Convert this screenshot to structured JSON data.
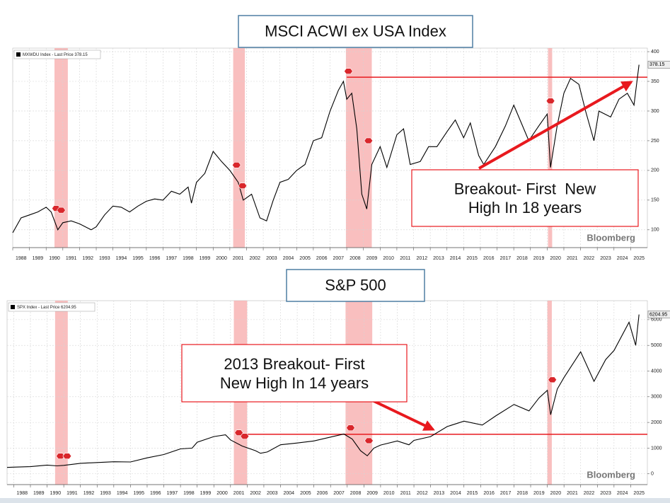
{
  "chart_data": [
    {
      "type": "line",
      "title": "MSCI ACWI ex USA Index",
      "x": [
        1988.0,
        1988.5,
        1989.0,
        1989.5,
        1990.0,
        1990.3,
        1990.7,
        1991.0,
        1991.5,
        1992.0,
        1992.7,
        1993.0,
        1993.5,
        1994.0,
        1994.5,
        1995.0,
        1995.5,
        1996.0,
        1996.5,
        1997.0,
        1997.5,
        1998.0,
        1998.5,
        1998.7,
        1999.0,
        1999.5,
        2000.0,
        2000.5,
        2001.0,
        2001.5,
        2001.8,
        2002.3,
        2002.8,
        2003.2,
        2003.6,
        2004.0,
        2004.5,
        2005.0,
        2005.5,
        2006.0,
        2006.5,
        2007.0,
        2007.5,
        2007.8,
        2008.0,
        2008.3,
        2008.6,
        2008.9,
        2009.2,
        2009.5,
        2010.0,
        2010.4,
        2011.0,
        2011.4,
        2011.8,
        2012.4,
        2012.9,
        2013.4,
        2014.0,
        2014.5,
        2015.0,
        2015.4,
        2015.9,
        2016.2,
        2016.9,
        2017.5,
        2018.0,
        2018.9,
        2019.5,
        2020.0,
        2020.2,
        2020.6,
        2021.0,
        2021.4,
        2021.9,
        2022.3,
        2022.8,
        2023.1,
        2023.8,
        2024.3,
        2024.8,
        2025.2,
        2025.5
      ],
      "series": [
        {
          "name": "MXWDU Index - Last Price 378.15",
          "color": "#000000",
          "values": [
            95,
            120,
            125,
            130,
            138,
            130,
            100,
            112,
            115,
            110,
            100,
            105,
            125,
            140,
            138,
            130,
            140,
            148,
            152,
            150,
            165,
            160,
            172,
            145,
            180,
            195,
            232,
            215,
            200,
            180,
            150,
            160,
            120,
            115,
            150,
            180,
            185,
            200,
            210,
            250,
            255,
            300,
            335,
            350,
            320,
            330,
            270,
            160,
            135,
            210,
            240,
            205,
            260,
            270,
            210,
            215,
            240,
            240,
            265,
            285,
            255,
            280,
            225,
            210,
            240,
            275,
            310,
            250,
            275,
            295,
            205,
            275,
            330,
            355,
            345,
            300,
            250,
            300,
            290,
            320,
            330,
            310,
            378
          ]
        }
      ],
      "last_price": 378.15,
      "xlim": [
        1988,
        2026
      ],
      "xticks": [
        1988,
        1989,
        1990,
        1991,
        1992,
        1993,
        1994,
        1995,
        1996,
        1997,
        1998,
        1999,
        2000,
        2001,
        2002,
        2003,
        2004,
        2005,
        2006,
        2007,
        2008,
        2009,
        2010,
        2011,
        2012,
        2013,
        2014,
        2015,
        2016,
        2017,
        2018,
        2019,
        2020,
        2021,
        2022,
        2023,
        2024,
        2025
      ],
      "ylim": [
        70,
        406
      ],
      "yticks": [
        100,
        150,
        200,
        250,
        300,
        350,
        400
      ],
      "grid": true,
      "bands": [
        [
          1990.5,
          1991.3
        ],
        [
          2001.2,
          2001.9
        ],
        [
          2007.95,
          2009.5
        ],
        [
          2020.05,
          2020.3
        ]
      ],
      "markers": {
        "x": [
          1990.6,
          1990.9,
          2001.4,
          2001.76,
          2008.1,
          2009.3,
          2020.2
        ],
        "y": [
          136,
          133,
          209,
          174,
          367,
          250,
          317
        ]
      },
      "ref_line": {
        "value": 357,
        "from": 2008.0
      },
      "annotation": [
        "Breakout- First  New",
        "High In 18 years"
      ],
      "watermark": "Bloomberg"
    },
    {
      "type": "line",
      "title": "S&P 500",
      "x": [
        1987.6,
        1988.0,
        1989.0,
        1990.0,
        1990.6,
        1991.0,
        1992.0,
        1993.0,
        1994.0,
        1995.0,
        1996.0,
        1997.0,
        1998.0,
        1998.7,
        1999.0,
        2000.0,
        2000.7,
        2001.0,
        2001.7,
        2002.5,
        2002.8,
        2003.2,
        2004.0,
        2005.0,
        2006.0,
        2007.0,
        2007.8,
        2008.3,
        2008.8,
        2009.2,
        2009.6,
        2010.0,
        2011.0,
        2011.7,
        2012.0,
        2013.0,
        2014.0,
        2015.0,
        2016.1,
        2016.9,
        2018.0,
        2018.9,
        2019.5,
        2020.0,
        2020.2,
        2020.6,
        2021.0,
        2022.0,
        2022.8,
        2023.5,
        2024.0,
        2024.9,
        2025.3,
        2025.5
      ],
      "series": [
        {
          "name": "SPX Index - Last Price 6204.95",
          "color": "#000000",
          "values": [
            250,
            260,
            280,
            340,
            310,
            330,
            410,
            440,
            470,
            460,
            620,
            750,
            970,
            1000,
            1230,
            1450,
            1520,
            1320,
            1080,
            900,
            800,
            850,
            1130,
            1200,
            1280,
            1430,
            1550,
            1350,
            900,
            700,
            1000,
            1120,
            1280,
            1130,
            1300,
            1450,
            1840,
            2050,
            1900,
            2250,
            2700,
            2450,
            2950,
            3250,
            2300,
            3300,
            3750,
            4750,
            3600,
            4450,
            4800,
            5900,
            5000,
            6200
          ]
        }
      ],
      "last_price": 6204.95,
      "xlim": [
        1987.6,
        2026
      ],
      "xticks": [
        1988,
        1989,
        1990,
        1991,
        1992,
        1993,
        1994,
        1995,
        1996,
        1997,
        1998,
        1999,
        2000,
        2001,
        2002,
        2003,
        2004,
        2005,
        2006,
        2007,
        2008,
        2009,
        2010,
        2011,
        2012,
        2013,
        2014,
        2015,
        2016,
        2017,
        2018,
        2019,
        2020,
        2021,
        2022,
        2023,
        2024,
        2025
      ],
      "ylim": [
        -420,
        6740
      ],
      "yticks": [
        0,
        1000,
        2000,
        3000,
        4000,
        5000,
        6000
      ],
      "grid": true,
      "bands": [
        [
          1990.48,
          1991.24
        ],
        [
          2001.2,
          2002.0
        ],
        [
          2007.9,
          2009.5
        ],
        [
          2020.0,
          2020.27
        ]
      ],
      "markers": {
        "x": [
          1990.8,
          1991.2,
          2001.5,
          2001.85,
          2008.2,
          2009.3,
          2020.3
        ],
        "y": [
          690,
          690,
          1600,
          1460,
          1790,
          1290,
          3660
        ]
      },
      "ref_line": {
        "value": 1540,
        "from": 2001.4
      },
      "annotation": [
        "2013 Breakout- First",
        "New High In 14 years"
      ],
      "watermark": "Bloomberg"
    }
  ]
}
